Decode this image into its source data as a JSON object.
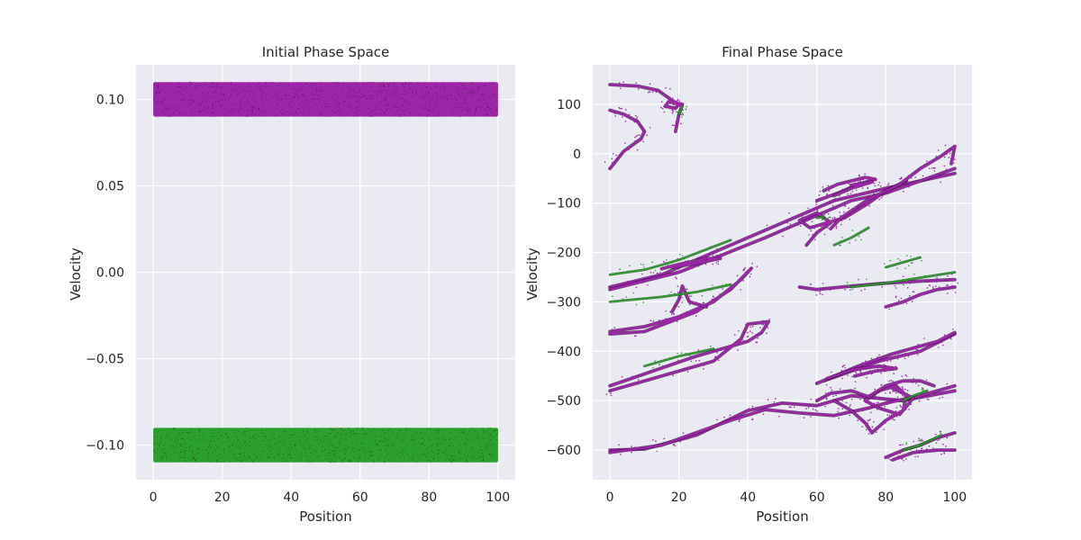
{
  "chart_data": [
    {
      "type": "scatter",
      "title": "Initial Phase Space",
      "xlabel": "Position",
      "ylabel": "Velocity",
      "xlim": [
        -5,
        105
      ],
      "ylim": [
        -0.12,
        0.12
      ],
      "xticks": [
        0,
        20,
        40,
        60,
        80,
        100
      ],
      "xtick_labels": [
        "0",
        "20",
        "40",
        "60",
        "80",
        "100"
      ],
      "yticks": [
        -0.1,
        -0.05,
        0.0,
        0.05,
        0.1
      ],
      "ytick_labels": [
        "−0.10",
        "−0.05",
        "0.00",
        "0.05",
        "0.10"
      ],
      "grid": true,
      "series": [
        {
          "color": "#9b27a8",
          "x_range": [
            0,
            100
          ],
          "y_range": [
            0.09,
            0.11
          ]
        },
        {
          "color": "#2ca02c",
          "x_range": [
            0,
            100
          ],
          "y_range": [
            -0.11,
            -0.09
          ]
        }
      ]
    },
    {
      "type": "scatter",
      "title": "Final Phase Space",
      "xlabel": "Position",
      "ylabel": "Velocity",
      "xlim": [
        -5,
        105
      ],
      "ylim": [
        -660,
        180
      ],
      "xticks": [
        0,
        20,
        40,
        60,
        80,
        100
      ],
      "xtick_labels": [
        "0",
        "20",
        "40",
        "60",
        "80",
        "100"
      ],
      "yticks": [
        100,
        0,
        -100,
        -200,
        -300,
        -400,
        -500,
        -600
      ],
      "ytick_labels": [
        "100",
        "0",
        "−100",
        "−200",
        "−300",
        "−400",
        "−500",
        "−600"
      ],
      "grid": true,
      "series": [
        {
          "color": "#9b27a8",
          "filaments": [
            [
              [
                0,
                140
              ],
              [
                8,
                137
              ],
              [
                14,
                128
              ],
              [
                18,
                108
              ],
              [
                20,
                100
              ],
              [
                19,
                92
              ],
              [
                16,
                96
              ],
              [
                17,
                105
              ],
              [
                21,
                100
              ],
              [
                20,
                80
              ],
              [
                19,
                45
              ]
            ],
            [
              [
                0,
                88
              ],
              [
                4,
                80
              ],
              [
                8,
                65
              ],
              [
                10,
                45
              ],
              [
                9,
                30
              ],
              [
                4,
                5
              ],
              [
                0,
                -30
              ]
            ],
            [
              [
                0,
                -270
              ],
              [
                15,
                -245
              ],
              [
                30,
                -200
              ],
              [
                50,
                -140
              ],
              [
                65,
                -95
              ],
              [
                80,
                -70
              ],
              [
                100,
                -40
              ]
            ],
            [
              [
                0,
                -275
              ],
              [
                20,
                -240
              ],
              [
                45,
                -170
              ],
              [
                70,
                -95
              ],
              [
                80,
                -80
              ],
              [
                100,
                -30
              ]
            ],
            [
              [
                15,
                -233
              ],
              [
                20,
                -224
              ],
              [
                28,
                -212
              ],
              [
                32,
                -212
              ],
              [
                25,
                -222
              ],
              [
                18,
                -230
              ]
            ],
            [
              [
                0,
                -360
              ],
              [
                10,
                -350
              ],
              [
                20,
                -330
              ],
              [
                30,
                -300
              ],
              [
                38,
                -255
              ],
              [
                41,
                -232
              ],
              [
                35,
                -275
              ],
              [
                25,
                -320
              ],
              [
                10,
                -360
              ],
              [
                0,
                -365
              ]
            ],
            [
              [
                18,
                -320
              ],
              [
                20,
                -295
              ],
              [
                21,
                -268
              ],
              [
                23,
                -300
              ],
              [
                28,
                -310
              ]
            ],
            [
              [
                0,
                -470
              ],
              [
                25,
                -410
              ],
              [
                40,
                -380
              ],
              [
                44,
                -362
              ],
              [
                46,
                -340
              ],
              [
                40,
                -345
              ],
              [
                38,
                -375
              ],
              [
                30,
                -420
              ],
              [
                15,
                -450
              ],
              [
                0,
                -480
              ]
            ],
            [
              [
                0,
                -600
              ],
              [
                10,
                -598
              ],
              [
                25,
                -570
              ],
              [
                40,
                -520
              ],
              [
                50,
                -505
              ],
              [
                60,
                -510
              ],
              [
                70,
                -490
              ],
              [
                85,
                -500
              ],
              [
                100,
                -480
              ]
            ],
            [
              [
                0,
                -605
              ],
              [
                15,
                -590
              ],
              [
                35,
                -540
              ],
              [
                45,
                -518
              ],
              [
                55,
                -525
              ],
              [
                65,
                -530
              ],
              [
                75,
                -515
              ],
              [
                80,
                -505
              ],
              [
                90,
                -490
              ],
              [
                100,
                -470
              ]
            ],
            [
              [
                62,
                -460
              ],
              [
                70,
                -440
              ],
              [
                78,
                -420
              ],
              [
                84,
                -410
              ],
              [
                90,
                -400
              ],
              [
                100,
                -365
              ]
            ],
            [
              [
                60,
                -465
              ],
              [
                72,
                -430
              ],
              [
                82,
                -405
              ],
              [
                95,
                -380
              ],
              [
                100,
                -362
              ]
            ],
            [
              [
                63,
                -455
              ],
              [
                70,
                -438
              ],
              [
                78,
                -430
              ],
              [
                83,
                -435
              ],
              [
                77,
                -440
              ],
              [
                71,
                -450
              ]
            ],
            [
              [
                65,
                -500
              ],
              [
                70,
                -520
              ],
              [
                74,
                -545
              ],
              [
                76,
                -565
              ],
              [
                80,
                -540
              ],
              [
                85,
                -520
              ],
              [
                86,
                -490
              ],
              [
                83,
                -470
              ],
              [
                78,
                -480
              ],
              [
                74,
                -500
              ],
              [
                78,
                -515
              ],
              [
                84,
                -528
              ],
              [
                88,
                -495
              ],
              [
                82,
                -475
              ]
            ],
            [
              [
                60,
                -500
              ],
              [
                64,
                -485
              ],
              [
                70,
                -480
              ],
              [
                75,
                -492
              ],
              [
                80,
                -470
              ],
              [
                85,
                -460
              ],
              [
                90,
                -460
              ],
              [
                94,
                -470
              ]
            ],
            [
              [
                57,
                -185
              ],
              [
                60,
                -160
              ],
              [
                64,
                -140
              ],
              [
                60,
                -120
              ],
              [
                55,
                -135
              ],
              [
                58,
                -150
              ],
              [
                68,
                -130
              ],
              [
                75,
                -100
              ],
              [
                80,
                -75
              ],
              [
                86,
                -55
              ]
            ],
            [
              [
                64,
                -152
              ],
              [
                67,
                -130
              ],
              [
                75,
                -92
              ],
              [
                84,
                -62
              ],
              [
                90,
                -30
              ],
              [
                96,
                -5
              ],
              [
                100,
                15
              ],
              [
                99,
                -20
              ]
            ],
            [
              [
                60,
                -95
              ],
              [
                66,
                -80
              ],
              [
                72,
                -62
              ],
              [
                77,
                -52
              ],
              [
                74,
                -48
              ],
              [
                66,
                -62
              ],
              [
                62,
                -75
              ]
            ],
            [
              [
                65,
                -85
              ],
              [
                70,
                -70
              ],
              [
                76,
                -57
              ],
              [
                70,
                -64
              ]
            ],
            [
              [
                80,
                -615
              ],
              [
                85,
                -600
              ],
              [
                90,
                -590
              ],
              [
                95,
                -575
              ],
              [
                100,
                -565
              ]
            ],
            [
              [
                82,
                -620
              ],
              [
                88,
                -605
              ],
              [
                95,
                -600
              ],
              [
                100,
                -600
              ]
            ],
            [
              [
                80,
                -310
              ],
              [
                85,
                -300
              ],
              [
                90,
                -285
              ],
              [
                95,
                -275
              ],
              [
                100,
                -270
              ]
            ],
            [
              [
                55,
                -270
              ],
              [
                60,
                -275
              ],
              [
                70,
                -268
              ],
              [
                80,
                -262
              ],
              [
                90,
                -258
              ],
              [
                100,
                -255
              ]
            ]
          ]
        },
        {
          "color": "#2ca02c",
          "filaments": [
            [
              [
                0,
                -245
              ],
              [
                10,
                -235
              ],
              [
                20,
                -215
              ],
              [
                35,
                -175
              ]
            ],
            [
              [
                0,
                -300
              ],
              [
                15,
                -290
              ],
              [
                25,
                -280
              ],
              [
                35,
                -265
              ]
            ],
            [
              [
                65,
                -185
              ],
              [
                70,
                -170
              ],
              [
                75,
                -150
              ]
            ],
            [
              [
                60,
                -130
              ],
              [
                62,
                -128
              ]
            ],
            [
              [
                20,
                80
              ],
              [
                21,
                95
              ]
            ],
            [
              [
                85,
                -500
              ],
              [
                88,
                -490
              ],
              [
                92,
                -480
              ]
            ],
            [
              [
                80,
                -230
              ],
              [
                85,
                -220
              ],
              [
                90,
                -210
              ]
            ],
            [
              [
                85,
                -600
              ],
              [
                90,
                -590
              ],
              [
                96,
                -570
              ]
            ],
            [
              [
                10,
                -430
              ],
              [
                20,
                -410
              ],
              [
                30,
                -395
              ]
            ],
            [
              [
                70,
                -270
              ],
              [
                80,
                -262
              ],
              [
                100,
                -240
              ]
            ]
          ]
        }
      ]
    }
  ]
}
